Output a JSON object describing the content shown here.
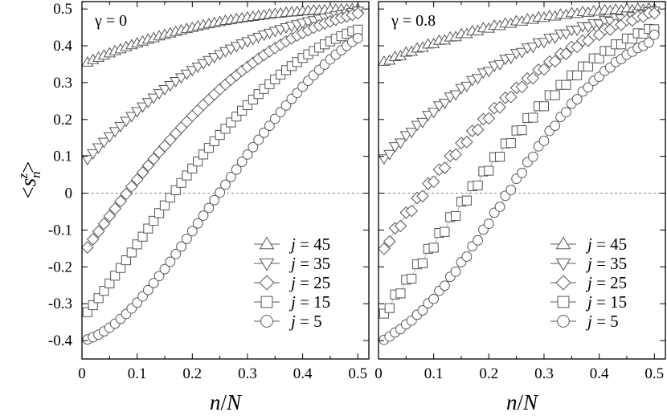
{
  "chart_data": [
    {
      "type": "scatter",
      "annotation": "γ = 0",
      "xlabel": "n/N",
      "ylabel": "<s_n^z>",
      "xlim": [
        0,
        0.52
      ],
      "ylim": [
        -0.45,
        0.52
      ],
      "xticks": [
        "0",
        "0.1",
        "0.2",
        "0.3",
        "0.4",
        "0.5"
      ],
      "yticks": [
        "0.5",
        "0.4",
        "0.3",
        "0.2",
        "0.1",
        "0",
        "-0.1",
        "-0.2",
        "-0.3",
        "-0.4"
      ],
      "zero_line": "dashed",
      "grid": false,
      "legend_position": "bottom-right",
      "connected": false,
      "x": [
        0.01,
        0.02,
        0.03,
        0.04,
        0.05,
        0.06,
        0.07,
        0.08,
        0.09,
        0.1,
        0.11,
        0.12,
        0.13,
        0.14,
        0.15,
        0.16,
        0.17,
        0.18,
        0.19,
        0.2,
        0.21,
        0.22,
        0.23,
        0.24,
        0.25,
        0.26,
        0.27,
        0.28,
        0.29,
        0.3,
        0.31,
        0.32,
        0.33,
        0.34,
        0.35,
        0.36,
        0.37,
        0.38,
        0.39,
        0.4,
        0.41,
        0.42,
        0.43,
        0.44,
        0.45,
        0.46,
        0.47,
        0.48,
        0.49,
        0.5
      ],
      "series": [
        {
          "name": "j = 45",
          "marker": "triangle-up",
          "values": [
            0.355,
            0.362,
            0.368,
            0.374,
            0.38,
            0.386,
            0.391,
            0.397,
            0.402,
            0.407,
            0.412,
            0.417,
            0.421,
            0.426,
            0.43,
            0.434,
            0.438,
            0.442,
            0.446,
            0.449,
            0.453,
            0.456,
            0.459,
            0.462,
            0.465,
            0.468,
            0.47,
            0.473,
            0.475,
            0.477,
            0.479,
            0.481,
            0.483,
            0.485,
            0.487,
            0.488,
            0.49,
            0.491,
            0.492,
            0.494,
            0.495,
            0.496,
            0.496,
            0.497,
            0.498,
            0.498,
            0.499,
            0.499,
            0.5,
            0.5
          ]
        },
        {
          "name": "j = 35",
          "marker": "triangle-down",
          "values": [
            0.092,
            0.108,
            0.124,
            0.139,
            0.154,
            0.168,
            0.182,
            0.196,
            0.209,
            0.222,
            0.235,
            0.247,
            0.259,
            0.271,
            0.282,
            0.293,
            0.304,
            0.314,
            0.324,
            0.334,
            0.343,
            0.352,
            0.361,
            0.369,
            0.377,
            0.385,
            0.392,
            0.399,
            0.406,
            0.412,
            0.418,
            0.424,
            0.43,
            0.435,
            0.44,
            0.445,
            0.45,
            0.454,
            0.458,
            0.462,
            0.466,
            0.469,
            0.473,
            0.476,
            0.479,
            0.482,
            0.485,
            0.488,
            0.491,
            0.495
          ]
        },
        {
          "name": "j = 25",
          "marker": "diamond",
          "values": [
            -0.147,
            -0.125,
            -0.104,
            -0.083,
            -0.062,
            -0.042,
            -0.022,
            -0.002,
            0.018,
            0.037,
            0.056,
            0.075,
            0.093,
            0.111,
            0.128,
            0.145,
            0.162,
            0.178,
            0.194,
            0.21,
            0.225,
            0.24,
            0.254,
            0.268,
            0.282,
            0.295,
            0.308,
            0.32,
            0.332,
            0.343,
            0.354,
            0.365,
            0.375,
            0.385,
            0.394,
            0.403,
            0.412,
            0.42,
            0.428,
            0.435,
            0.442,
            0.449,
            0.455,
            0.461,
            0.466,
            0.471,
            0.476,
            0.48,
            0.484,
            0.488
          ]
        },
        {
          "name": "j = 15",
          "marker": "square",
          "values": [
            -0.323,
            -0.304,
            -0.285,
            -0.265,
            -0.245,
            -0.224,
            -0.203,
            -0.182,
            -0.161,
            -0.139,
            -0.118,
            -0.096,
            -0.075,
            -0.054,
            -0.033,
            -0.012,
            0.008,
            0.028,
            0.048,
            0.067,
            0.086,
            0.105,
            0.123,
            0.141,
            0.158,
            0.175,
            0.192,
            0.208,
            0.224,
            0.239,
            0.254,
            0.269,
            0.283,
            0.296,
            0.309,
            0.322,
            0.334,
            0.345,
            0.356,
            0.367,
            0.377,
            0.386,
            0.395,
            0.404,
            0.412,
            0.419,
            0.426,
            0.433,
            0.439,
            0.444
          ]
        },
        {
          "name": "j = 5",
          "marker": "circle",
          "values": [
            -0.397,
            -0.391,
            -0.384,
            -0.375,
            -0.365,
            -0.354,
            -0.341,
            -0.328,
            -0.313,
            -0.297,
            -0.28,
            -0.263,
            -0.244,
            -0.225,
            -0.206,
            -0.186,
            -0.165,
            -0.145,
            -0.124,
            -0.103,
            -0.082,
            -0.061,
            -0.04,
            -0.019,
            0.002,
            0.023,
            0.044,
            0.064,
            0.085,
            0.105,
            0.125,
            0.145,
            0.164,
            0.183,
            0.202,
            0.22,
            0.238,
            0.256,
            0.272,
            0.289,
            0.305,
            0.32,
            0.335,
            0.349,
            0.363,
            0.376,
            0.388,
            0.4,
            0.411,
            0.421
          ]
        }
      ]
    },
    {
      "type": "scatter",
      "annotation": "γ = 0.8",
      "xlabel": "n/N",
      "ylabel": "",
      "xlim": [
        0,
        0.52
      ],
      "ylim": [
        -0.45,
        0.52
      ],
      "xticks": [
        "0",
        "0.1",
        "0.2",
        "0.3",
        "0.4",
        "0.5"
      ],
      "zero_line": "dashed",
      "grid": false,
      "legend_position": "bottom-right",
      "connected": true,
      "x": [
        0.01,
        0.02,
        0.03,
        0.04,
        0.05,
        0.06,
        0.07,
        0.08,
        0.09,
        0.1,
        0.11,
        0.12,
        0.13,
        0.14,
        0.15,
        0.16,
        0.17,
        0.18,
        0.19,
        0.2,
        0.21,
        0.22,
        0.23,
        0.24,
        0.25,
        0.26,
        0.27,
        0.28,
        0.29,
        0.3,
        0.31,
        0.32,
        0.33,
        0.34,
        0.35,
        0.36,
        0.37,
        0.38,
        0.39,
        0.4,
        0.41,
        0.42,
        0.43,
        0.44,
        0.45,
        0.46,
        0.47,
        0.48,
        0.49,
        0.5
      ],
      "series": [
        {
          "name": "j = 45",
          "marker": "triangle-up",
          "values": [
            0.357,
            0.36,
            0.37,
            0.372,
            0.382,
            0.384,
            0.393,
            0.395,
            0.404,
            0.405,
            0.414,
            0.415,
            0.423,
            0.424,
            0.432,
            0.432,
            0.44,
            0.44,
            0.448,
            0.447,
            0.455,
            0.454,
            0.461,
            0.46,
            0.467,
            0.466,
            0.472,
            0.471,
            0.477,
            0.476,
            0.481,
            0.48,
            0.485,
            0.484,
            0.489,
            0.487,
            0.492,
            0.49,
            0.494,
            0.493,
            0.497,
            0.495,
            0.498,
            0.496,
            0.5,
            0.497,
            0.501,
            0.498,
            0.501,
            0.5
          ]
        },
        {
          "name": "j = 35",
          "marker": "triangle-down",
          "values": [
            0.094,
            0.106,
            0.127,
            0.137,
            0.157,
            0.166,
            0.185,
            0.193,
            0.212,
            0.22,
            0.238,
            0.245,
            0.262,
            0.268,
            0.285,
            0.291,
            0.307,
            0.312,
            0.327,
            0.331,
            0.346,
            0.35,
            0.364,
            0.367,
            0.38,
            0.383,
            0.395,
            0.397,
            0.409,
            0.41,
            0.421,
            0.422,
            0.433,
            0.433,
            0.443,
            0.443,
            0.453,
            0.452,
            0.461,
            0.46,
            0.469,
            0.467,
            0.476,
            0.474,
            0.482,
            0.48,
            0.488,
            0.486,
            0.493,
            0.495
          ]
        },
        {
          "name": "j = 25",
          "marker": "diamond",
          "values": [
            -0.151,
            -0.131,
            -0.095,
            -0.089,
            -0.053,
            -0.048,
            -0.013,
            -0.008,
            0.026,
            0.031,
            0.064,
            0.069,
            0.101,
            0.105,
            0.136,
            0.139,
            0.169,
            0.172,
            0.201,
            0.203,
            0.231,
            0.233,
            0.259,
            0.261,
            0.286,
            0.288,
            0.311,
            0.312,
            0.335,
            0.336,
            0.357,
            0.358,
            0.378,
            0.378,
            0.397,
            0.397,
            0.414,
            0.414,
            0.43,
            0.43,
            0.445,
            0.444,
            0.458,
            0.457,
            0.47,
            0.469,
            0.48,
            0.479,
            0.489,
            0.488
          ]
        },
        {
          "name": "j = 15",
          "marker": "square",
          "values": [
            -0.327,
            -0.312,
            -0.275,
            -0.272,
            -0.235,
            -0.232,
            -0.193,
            -0.19,
            -0.151,
            -0.148,
            -0.108,
            -0.105,
            -0.065,
            -0.062,
            -0.023,
            -0.02,
            0.019,
            0.021,
            0.059,
            0.061,
            0.098,
            0.099,
            0.135,
            0.136,
            0.17,
            0.171,
            0.204,
            0.205,
            0.236,
            0.236,
            0.266,
            0.266,
            0.294,
            0.294,
            0.32,
            0.32,
            0.344,
            0.344,
            0.366,
            0.366,
            0.386,
            0.386,
            0.404,
            0.404,
            0.42,
            0.419,
            0.434,
            0.433,
            0.446,
            0.445
          ]
        },
        {
          "name": "j = 5",
          "marker": "circle",
          "values": [
            -0.398,
            -0.389,
            -0.378,
            -0.369,
            -0.356,
            -0.346,
            -0.33,
            -0.318,
            -0.299,
            -0.287,
            -0.265,
            -0.251,
            -0.227,
            -0.213,
            -0.187,
            -0.172,
            -0.144,
            -0.128,
            -0.099,
            -0.083,
            -0.053,
            -0.037,
            -0.007,
            0.009,
            0.039,
            0.055,
            0.084,
            0.099,
            0.127,
            0.142,
            0.169,
            0.183,
            0.207,
            0.22,
            0.243,
            0.255,
            0.276,
            0.287,
            0.305,
            0.316,
            0.332,
            0.341,
            0.356,
            0.364,
            0.376,
            0.384,
            0.394,
            0.4,
            0.409,
            0.43
          ]
        }
      ]
    }
  ]
}
